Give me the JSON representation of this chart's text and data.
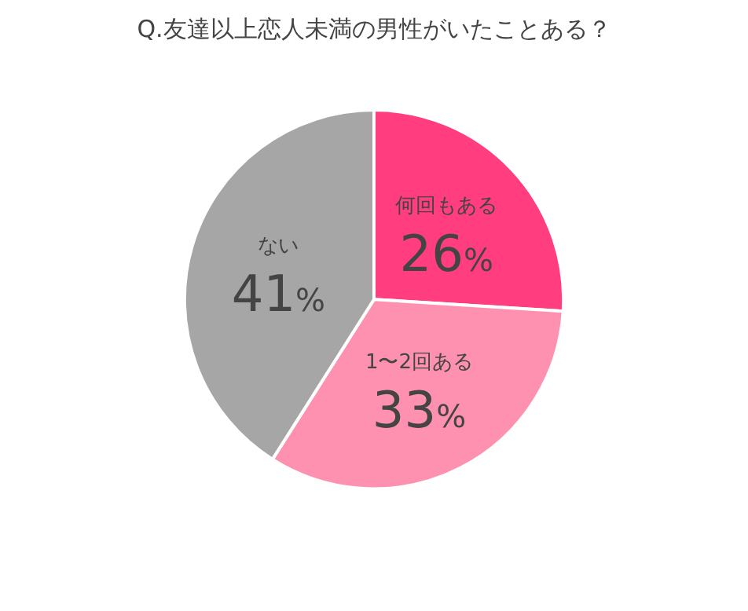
{
  "chart_data": {
    "type": "pie",
    "title": "Q.友達以上恋人未満の男性がいたことある？",
    "categories": [
      "何回もある",
      "1〜2回ある",
      "ない"
    ],
    "values": [
      26,
      33,
      41
    ],
    "value_labels": [
      "26%",
      "33%",
      "41%"
    ],
    "colors": [
      "#ff3d7f",
      "#ff91b0",
      "#a6a6a6"
    ],
    "legend": false
  }
}
